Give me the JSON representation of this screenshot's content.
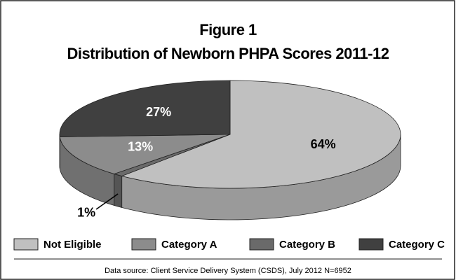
{
  "chart_data": {
    "type": "pie3d",
    "title": "Figure 1",
    "subtitle": "Distribution of Newborn PHPA Scores 2011-12",
    "categories": [
      "Not Eligible",
      "Category A",
      "Category B",
      "Category C"
    ],
    "values": [
      64,
      13,
      1,
      27
    ],
    "value_labels": [
      "64%",
      "13%",
      "1%",
      "27%"
    ],
    "colors": [
      "#c0c0c0",
      "#8c8c8c",
      "#6a6a6a",
      "#404040"
    ],
    "source": "Data source: Client Service Delivery System (CSDS), July 2012 N=6952"
  }
}
